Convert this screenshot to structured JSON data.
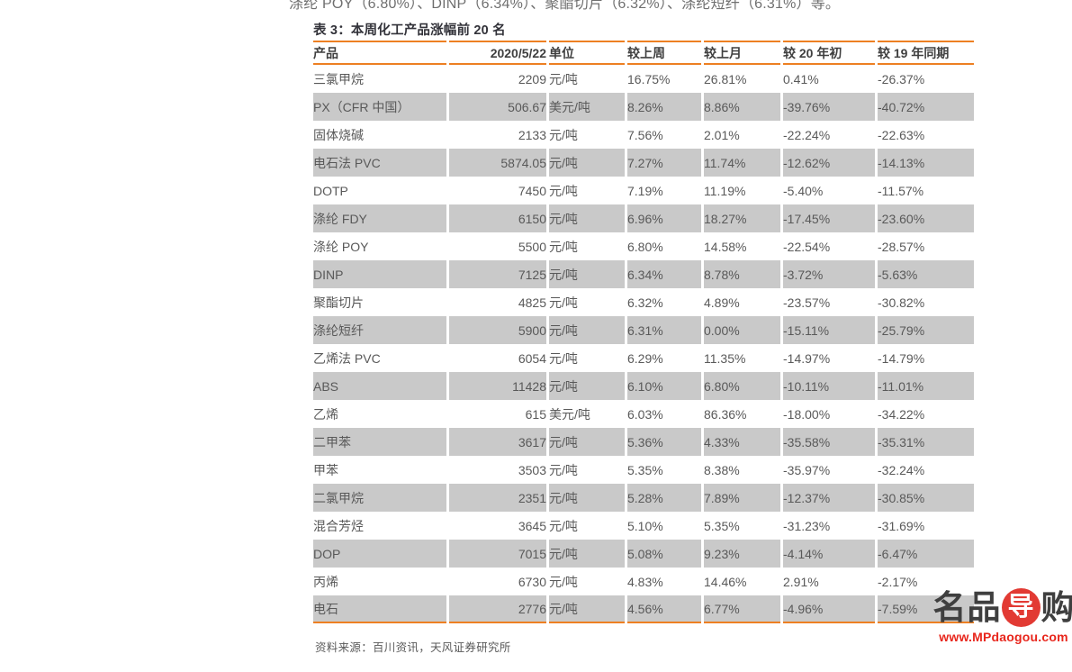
{
  "page": {
    "top_cut_text": "涤纶 POY（6.80%）、DINP（6.34%）、聚酯切片（6.32%）、涤纶短纤（6.31%）等。",
    "source_note": "资料来源：百川资讯，天风证券研究所"
  },
  "table": {
    "title": "表 3：本周化工产品涨幅前 20 名",
    "columns": [
      "产品",
      "2020/5/22",
      "单位",
      "较上周",
      "较上月",
      "较 20 年初",
      "较 19 年同期"
    ],
    "rows": [
      [
        "三氯甲烷",
        "2209",
        "元/吨",
        "16.75%",
        "26.81%",
        "0.41%",
        "-26.37%"
      ],
      [
        "PX（CFR 中国）",
        "506.67",
        "美元/吨",
        "8.26%",
        "8.86%",
        "-39.76%",
        "-40.72%"
      ],
      [
        "固体烧碱",
        "2133",
        "元/吨",
        "7.56%",
        "2.01%",
        "-22.24%",
        "-22.63%"
      ],
      [
        "电石法 PVC",
        "5874.05",
        "元/吨",
        "7.27%",
        "11.74%",
        "-12.62%",
        "-14.13%"
      ],
      [
        "DOTP",
        "7450",
        "元/吨",
        "7.19%",
        "11.19%",
        "-5.40%",
        "-11.57%"
      ],
      [
        "涤纶 FDY",
        "6150",
        "元/吨",
        "6.96%",
        "18.27%",
        "-17.45%",
        "-23.60%"
      ],
      [
        "涤纶 POY",
        "5500",
        "元/吨",
        "6.80%",
        "14.58%",
        "-22.54%",
        "-28.57%"
      ],
      [
        "DINP",
        "7125",
        "元/吨",
        "6.34%",
        "8.78%",
        "-3.72%",
        "-5.63%"
      ],
      [
        "聚酯切片",
        "4825",
        "元/吨",
        "6.32%",
        "4.89%",
        "-23.57%",
        "-30.82%"
      ],
      [
        "涤纶短纤",
        "5900",
        "元/吨",
        "6.31%",
        "0.00%",
        "-15.11%",
        "-25.79%"
      ],
      [
        "乙烯法 PVC",
        "6054",
        "元/吨",
        "6.29%",
        "11.35%",
        "-14.97%",
        "-14.79%"
      ],
      [
        "ABS",
        "11428",
        "元/吨",
        "6.10%",
        "6.80%",
        "-10.11%",
        "-11.01%"
      ],
      [
        "乙烯",
        "615",
        "美元/吨",
        "6.03%",
        "86.36%",
        "-18.00%",
        "-34.22%"
      ],
      [
        "二甲苯",
        "3617",
        "元/吨",
        "5.36%",
        "4.33%",
        "-35.58%",
        "-35.31%"
      ],
      [
        "甲苯",
        "3503",
        "元/吨",
        "5.35%",
        "8.38%",
        "-35.97%",
        "-32.24%"
      ],
      [
        "二氯甲烷",
        "2351",
        "元/吨",
        "5.28%",
        "7.89%",
        "-12.37%",
        "-30.85%"
      ],
      [
        "混合芳烃",
        "3645",
        "元/吨",
        "5.10%",
        "5.35%",
        "-31.23%",
        "-31.69%"
      ],
      [
        "DOP",
        "7015",
        "元/吨",
        "5.08%",
        "9.23%",
        "-4.14%",
        "-6.47%"
      ],
      [
        "丙烯",
        "6730",
        "元/吨",
        "4.83%",
        "14.46%",
        "2.91%",
        "-2.17%"
      ],
      [
        "电石",
        "2776",
        "元/吨",
        "4.56%",
        "6.77%",
        "-4.96%",
        "-7.59%"
      ]
    ]
  },
  "logo": {
    "char_1": "名",
    "char_2": "品",
    "char_circle": "导",
    "char_4": "购",
    "url": "www.MPdaogou.com"
  },
  "colors": {
    "rule_orange": "#ed8022",
    "stripe_gray": "#c9c9c9",
    "logo_circle_red": "#e23a33",
    "logo_url_red": "#e8261c"
  }
}
